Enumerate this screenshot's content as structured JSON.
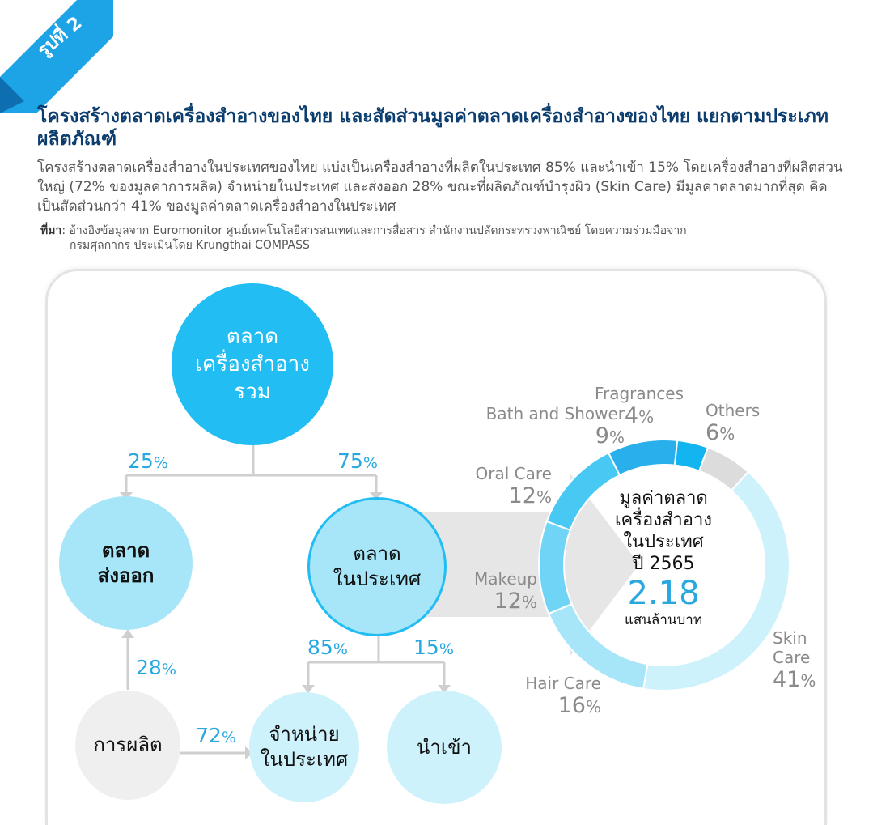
{
  "figure": {
    "label": "รูปที่ 2",
    "title": "โครงสร้างตลาดเครื่องสำอางของไทย และสัดส่วนมูลค่าตลาดเครื่องสำอางของไทย แยกตามประเภทผลิตภัณฑ์",
    "description": "โครงสร้างตลาดเครื่องสำอางในประเทศของไทย แบ่งเป็นเครื่องสำอางที่ผลิตในประเทศ 85% และนำเข้า 15% โดยเครื่องสำอางที่ผลิตส่วนใหญ่ (72% ของมูลค่าการผลิต) จำหน่ายในประเทศ และส่งออก 28% ขณะที่ผลิตภัณฑ์บำรุงผิว (Skin Care) มีมูลค่าตลาดมากที่สุด คิดเป็นสัดส่วนกว่า 41% ของมูลค่าตลาดเครื่องสำอางในประเทศ",
    "source_label": "ที่มา",
    "source_line1": ": อ้างอิงข้อมูลจาก Euromonitor ศูนย์เทคโนโลยีสารสนเทศและการสื่อสาร สำนักงานปลัดกระทรวงพาณิชย์ โดยความร่วมมือจาก",
    "source_line2": "กรมศุลกากร ประเมินโดย Krungthai COMPASS"
  },
  "nodes": {
    "total": "ตลาด\nเครื่องสำอาง\nรวม",
    "export": "ตลาด\nส่งออก",
    "domestic": "ตลาด\nในประเทศ",
    "production": "การผลิต",
    "sold_domestic": "จำหน่าย\nในประเทศ",
    "import": "นำเข้า"
  },
  "flows": {
    "total_to_export": {
      "value": "25",
      "unit": "%"
    },
    "total_to_domestic": {
      "value": "75",
      "unit": "%"
    },
    "production_to_export": {
      "value": "28",
      "unit": "%"
    },
    "production_to_sold": {
      "value": "72",
      "unit": "%"
    },
    "domestic_to_sold": {
      "value": "85",
      "unit": "%"
    },
    "domestic_to_import": {
      "value": "15",
      "unit": "%"
    }
  },
  "colors": {
    "ribbon": "#1da4e6",
    "primary_node": "#22bdf3",
    "light_node": "#a6e6f8",
    "lighter_node": "#cdf2fb",
    "gray_node": "#efefef",
    "arrow": "#e6e6e6",
    "line": "#cfcfcf",
    "accent_text": "#29a8e0"
  },
  "chart_data": {
    "type": "pie",
    "center_title": "มูลค่าตลาด\nเครื่องสำอาง\nในประเทศ\nปี 2565",
    "center_value": "2.18",
    "center_unit": "แสนล้านบาท",
    "slices": [
      {
        "name": "Skin Care",
        "label_lines": [
          "Skin",
          "Care"
        ],
        "value": 41,
        "display": "41",
        "unit": "%",
        "color": "#cdf2fb"
      },
      {
        "name": "Hair Care",
        "label_lines": [
          "Hair Care"
        ],
        "value": 16,
        "display": "16",
        "unit": "%",
        "color": "#a6e6f8"
      },
      {
        "name": "Makeup",
        "label_lines": [
          "Makeup"
        ],
        "value": 12,
        "display": "12",
        "unit": "%",
        "color": "#6fd4f5"
      },
      {
        "name": "Oral Care",
        "label_lines": [
          "Oral Care"
        ],
        "value": 12,
        "display": "12",
        "unit": "%",
        "color": "#48c9f3"
      },
      {
        "name": "Bath and Shower",
        "label_lines": [
          "Bath and Shower"
        ],
        "value": 9,
        "display": "9",
        "unit": "%",
        "color": "#29b0ec"
      },
      {
        "name": "Fragrances",
        "label_lines": [
          "Fragrances"
        ],
        "value": 4,
        "display": "4",
        "unit": "%",
        "color": "#13b5f0"
      },
      {
        "name": "Others",
        "label_lines": [
          "Others"
        ],
        "value": 6,
        "display": "6",
        "unit": "%",
        "color": "#dcdcdc"
      }
    ]
  }
}
